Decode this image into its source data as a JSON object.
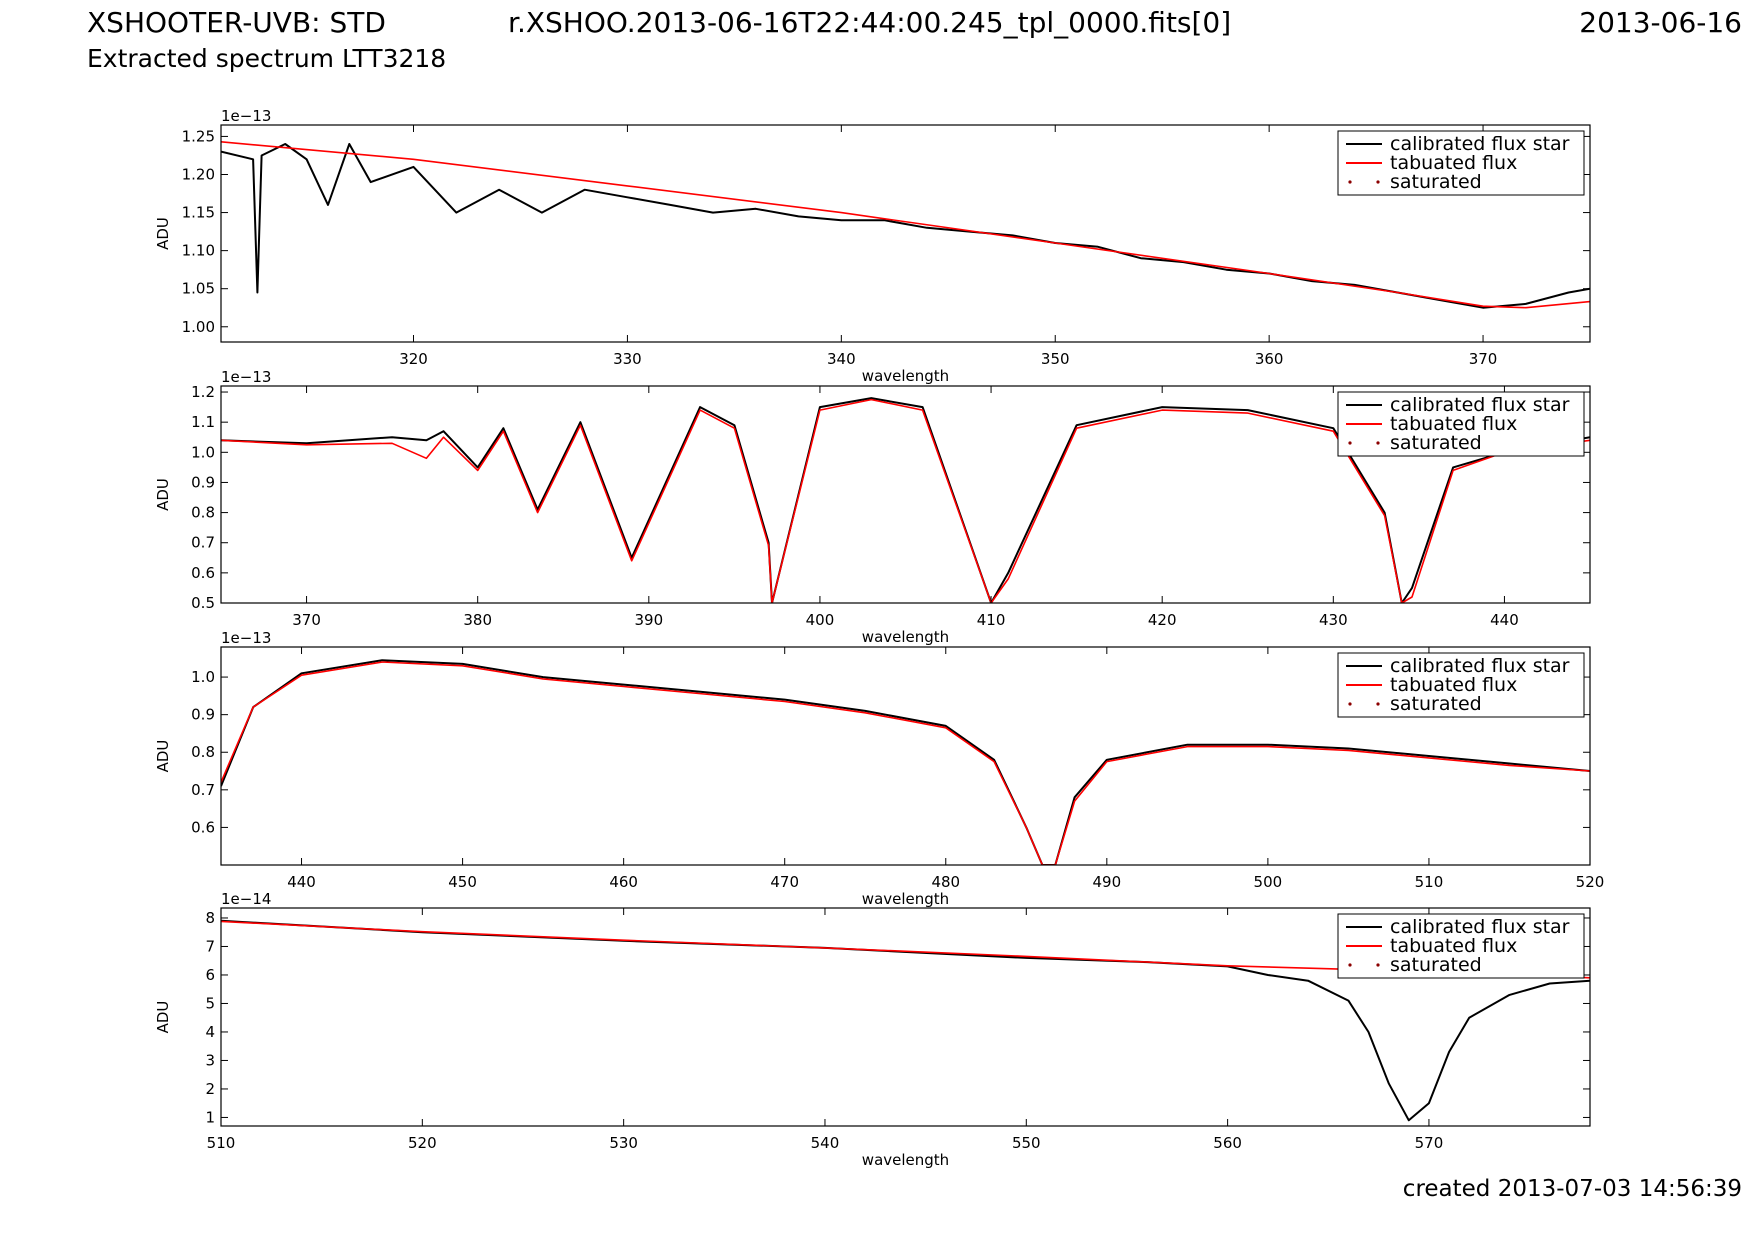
{
  "header": {
    "title_left": "XSHOOTER-UVB: STD",
    "title_sub": "Extracted spectrum LTT3218",
    "file_name": "r.XSHOO.2013-06-16T22:44:00.245_tpl_0000.fits[0]",
    "date": "2013-06-16"
  },
  "footer": {
    "created": "created 2013-07-03 14:56:39"
  },
  "colors": {
    "calibrated": "#000000",
    "tabulated": "#ff0000",
    "saturated": "#8b0000"
  },
  "legend": [
    "calibrated flux star",
    "tabuated flux",
    "saturated"
  ],
  "chart_data": [
    {
      "type": "line",
      "xlabel": "wavelength",
      "ylabel": "ADU",
      "multiplier": "1e−13",
      "xlim": [
        311,
        375
      ],
      "ylim": [
        0.98,
        1.265
      ],
      "xticks": [
        320,
        330,
        340,
        350,
        360,
        370
      ],
      "yticks": [
        1.0,
        1.05,
        1.1,
        1.15,
        1.2,
        1.25
      ],
      "ytick_labels": [
        "1.00",
        "1.05",
        "1.10",
        "1.15",
        "1.20",
        "1.25"
      ],
      "legend_position": "top-right",
      "series": [
        {
          "name": "calibrated flux star",
          "x": [
            311,
            312.5,
            312.7,
            312.9,
            314,
            315,
            316,
            317,
            318,
            320,
            322,
            324,
            326,
            328,
            330,
            332,
            334,
            336,
            338,
            340,
            342,
            344,
            346,
            348,
            350,
            352,
            354,
            356,
            358,
            360,
            362,
            364,
            366,
            368,
            370,
            372,
            374,
            375
          ],
          "y": [
            1.23,
            1.22,
            1.045,
            1.225,
            1.24,
            1.22,
            1.16,
            1.24,
            1.19,
            1.21,
            1.15,
            1.18,
            1.15,
            1.18,
            1.17,
            1.16,
            1.15,
            1.155,
            1.145,
            1.14,
            1.14,
            1.13,
            1.125,
            1.12,
            1.11,
            1.105,
            1.09,
            1.085,
            1.075,
            1.07,
            1.06,
            1.055,
            1.045,
            1.035,
            1.025,
            1.03,
            1.045,
            1.05
          ]
        },
        {
          "name": "tabuated flux",
          "x": [
            311,
            320,
            330,
            340,
            350,
            360,
            366,
            370,
            372,
            375
          ],
          "y": [
            1.243,
            1.22,
            1.185,
            1.15,
            1.11,
            1.07,
            1.045,
            1.027,
            1.025,
            1.033
          ]
        }
      ]
    },
    {
      "type": "line",
      "xlabel": "wavelength",
      "ylabel": "ADU",
      "multiplier": "1e−13",
      "xlim": [
        365,
        445
      ],
      "ylim": [
        0.5,
        1.22
      ],
      "xticks": [
        370,
        380,
        390,
        400,
        410,
        420,
        430,
        440
      ],
      "yticks": [
        0.5,
        0.6,
        0.7,
        0.8,
        0.9,
        1.0,
        1.1,
        1.2
      ],
      "ytick_labels": [
        "0.5",
        "0.6",
        "0.7",
        "0.8",
        "0.9",
        "1.0",
        "1.1",
        "1.2"
      ],
      "legend_position": "top-right",
      "series": [
        {
          "name": "calibrated flux star",
          "x": [
            365,
            370,
            375,
            377,
            378,
            380,
            381.5,
            383.5,
            386,
            389,
            393,
            395,
            397,
            397.2,
            400,
            403,
            406,
            410,
            411,
            415,
            420,
            425,
            430,
            433,
            434,
            434.6,
            437,
            440,
            445
          ],
          "y": [
            1.04,
            1.03,
            1.05,
            1.04,
            1.07,
            0.95,
            1.08,
            0.81,
            1.1,
            0.65,
            1.15,
            1.09,
            0.7,
            0.5,
            1.15,
            1.18,
            1.15,
            0.5,
            0.6,
            1.09,
            1.15,
            1.14,
            1.08,
            0.8,
            0.5,
            0.55,
            0.95,
            1.0,
            1.05
          ]
        },
        {
          "name": "tabuated flux",
          "x": [
            365,
            370,
            375,
            377,
            378,
            380,
            381.5,
            383.5,
            386,
            389,
            393,
            395,
            397,
            397.2,
            400,
            403,
            406,
            410,
            411,
            415,
            420,
            425,
            430,
            433,
            434,
            434.6,
            437,
            440,
            445
          ],
          "y": [
            1.04,
            1.025,
            1.03,
            0.98,
            1.05,
            0.94,
            1.07,
            0.8,
            1.09,
            0.64,
            1.14,
            1.08,
            0.69,
            0.5,
            1.14,
            1.175,
            1.14,
            0.5,
            0.58,
            1.08,
            1.14,
            1.13,
            1.07,
            0.79,
            0.5,
            0.52,
            0.94,
            1.0,
            1.04
          ]
        }
      ]
    },
    {
      "type": "line",
      "xlabel": "wavelength",
      "ylabel": "ADU",
      "multiplier": "1e−13",
      "xlim": [
        435,
        520
      ],
      "ylim": [
        0.5,
        1.08
      ],
      "xticks": [
        440,
        450,
        460,
        470,
        480,
        490,
        500,
        510,
        520
      ],
      "yticks": [
        0.6,
        0.7,
        0.8,
        0.9,
        1.0
      ],
      "ytick_labels": [
        "0.6",
        "0.7",
        "0.8",
        "0.9",
        "1.0"
      ],
      "legend_position": "top-right",
      "series": [
        {
          "name": "calibrated flux star",
          "x": [
            435,
            437,
            440,
            445,
            450,
            455,
            460,
            465,
            470,
            475,
            480,
            483,
            485,
            486,
            486.8,
            488,
            490,
            495,
            500,
            505,
            510,
            515,
            520
          ],
          "y": [
            0.71,
            0.92,
            1.01,
            1.045,
            1.035,
            1.0,
            0.98,
            0.96,
            0.94,
            0.91,
            0.87,
            0.78,
            0.6,
            0.5,
            0.5,
            0.68,
            0.78,
            0.82,
            0.82,
            0.81,
            0.79,
            0.77,
            0.75
          ]
        },
        {
          "name": "tabuated flux",
          "x": [
            435,
            437,
            440,
            445,
            450,
            455,
            460,
            465,
            470,
            475,
            480,
            483,
            485,
            486,
            486.8,
            488,
            490,
            495,
            500,
            505,
            510,
            515,
            520
          ],
          "y": [
            0.72,
            0.92,
            1.005,
            1.04,
            1.03,
            0.995,
            0.975,
            0.955,
            0.935,
            0.905,
            0.865,
            0.775,
            0.6,
            0.5,
            0.5,
            0.67,
            0.775,
            0.815,
            0.815,
            0.805,
            0.785,
            0.765,
            0.75
          ]
        }
      ]
    },
    {
      "type": "line",
      "xlabel": "wavelength",
      "ylabel": "ADU",
      "multiplier": "1e−14",
      "xlim": [
        510,
        578
      ],
      "ylim": [
        0.7,
        8.35
      ],
      "xticks": [
        510,
        520,
        530,
        540,
        550,
        560,
        570
      ],
      "yticks": [
        1,
        2,
        3,
        4,
        5,
        6,
        7,
        8
      ],
      "ytick_labels": [
        "1",
        "2",
        "3",
        "4",
        "5",
        "6",
        "7",
        "8"
      ],
      "legend_position": "top-right",
      "series": [
        {
          "name": "calibrated flux star",
          "x": [
            510,
            520,
            530,
            540,
            550,
            556,
            560,
            562,
            564,
            566,
            567,
            568,
            569,
            570,
            571,
            572,
            574,
            576,
            578
          ],
          "y": [
            7.9,
            7.5,
            7.2,
            6.95,
            6.6,
            6.45,
            6.3,
            6.0,
            5.8,
            5.1,
            4.0,
            2.2,
            0.9,
            1.5,
            3.3,
            4.5,
            5.3,
            5.7,
            5.8
          ]
        },
        {
          "name": "tabuated flux",
          "x": [
            510,
            520,
            530,
            540,
            550,
            560,
            566,
            570,
            578
          ],
          "y": [
            7.88,
            7.52,
            7.22,
            6.95,
            6.65,
            6.32,
            6.2,
            6.1,
            5.9
          ]
        }
      ]
    }
  ]
}
